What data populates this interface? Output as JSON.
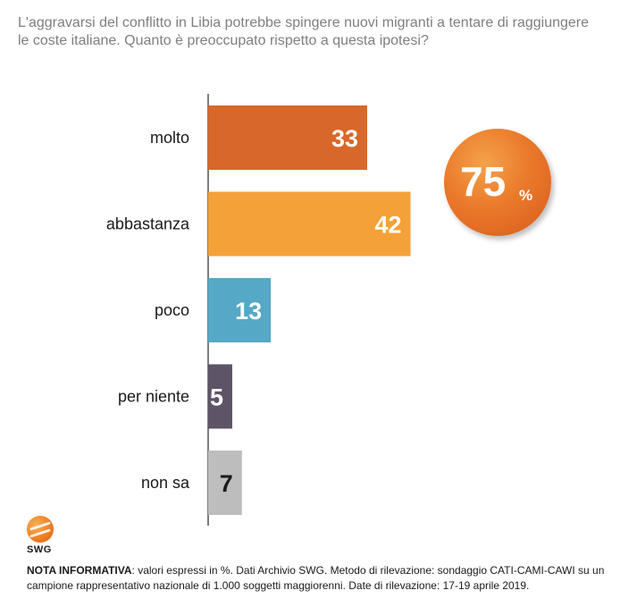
{
  "question": "L'aggravarsi del conflitto in Libia potrebbe spingere nuovi migranti a tentare di raggiungere le coste italiane. Quanto è preoccupato rispetto a questa ipotesi?",
  "chart_data": {
    "type": "bar",
    "orientation": "horizontal",
    "categories": [
      "molto",
      "abbastanza",
      "poco",
      "per niente",
      "non sa"
    ],
    "values": [
      33,
      42,
      13,
      5,
      7
    ],
    "colors": [
      "#d8682a",
      "#f4a13a",
      "#55a8c6",
      "#5e5468",
      "#bdbdbd"
    ],
    "label_colors": [
      "#ffffff",
      "#ffffff",
      "#ffffff",
      "#ffffff",
      "#1a1a1a"
    ],
    "xlim": [
      0,
      100
    ],
    "grid": false
  },
  "badge": {
    "value": "75",
    "unit": "%",
    "color": "#e8792a"
  },
  "logo": {
    "text": "SWG"
  },
  "note": {
    "label": "NOTA INFORMATIVA",
    "text": ": valori espressi in %. Dati Archivio SWG. Metodo di rilevazione: sondaggio CATI-CAMI-CAWI su un campione rappresentativo nazionale di 1.000 soggetti maggiorenni. Date di rilevazione: 17-19 aprile 2019."
  }
}
